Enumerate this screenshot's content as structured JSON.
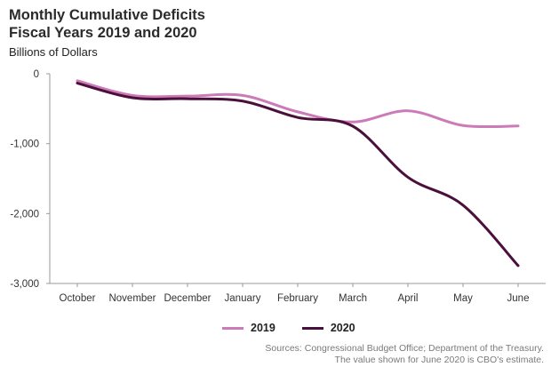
{
  "chart_data": {
    "type": "line",
    "title_line1": "Monthly Cumulative Deficits",
    "title_line2": "Fiscal Years 2019 and 2020",
    "ylabel": "Billions of Dollars",
    "categories": [
      "October",
      "November",
      "December",
      "January",
      "February",
      "March",
      "April",
      "May",
      "June"
    ],
    "ylim": [
      -3000,
      0
    ],
    "yticks": [
      0,
      -1000,
      -2000,
      -3000
    ],
    "ytick_labels": [
      "0",
      "-1,000",
      "-2,000",
      "-3,000"
    ],
    "grid": false,
    "legend_position": "bottom",
    "series": [
      {
        "name": "2019",
        "color": "#cc7ab8",
        "values": [
          -100,
          -310,
          -320,
          -310,
          -545,
          -690,
          -530,
          -740,
          -747
        ]
      },
      {
        "name": "2020",
        "color": "#4b0f3b",
        "values": [
          -134,
          -343,
          -357,
          -391,
          -625,
          -750,
          -1480,
          -1880,
          -2745
        ]
      }
    ]
  },
  "sources": {
    "line1": "Sources: Congressional Budget Office; Department of the Treasury.",
    "line2": "The value shown for June 2020 is CBO's estimate."
  }
}
